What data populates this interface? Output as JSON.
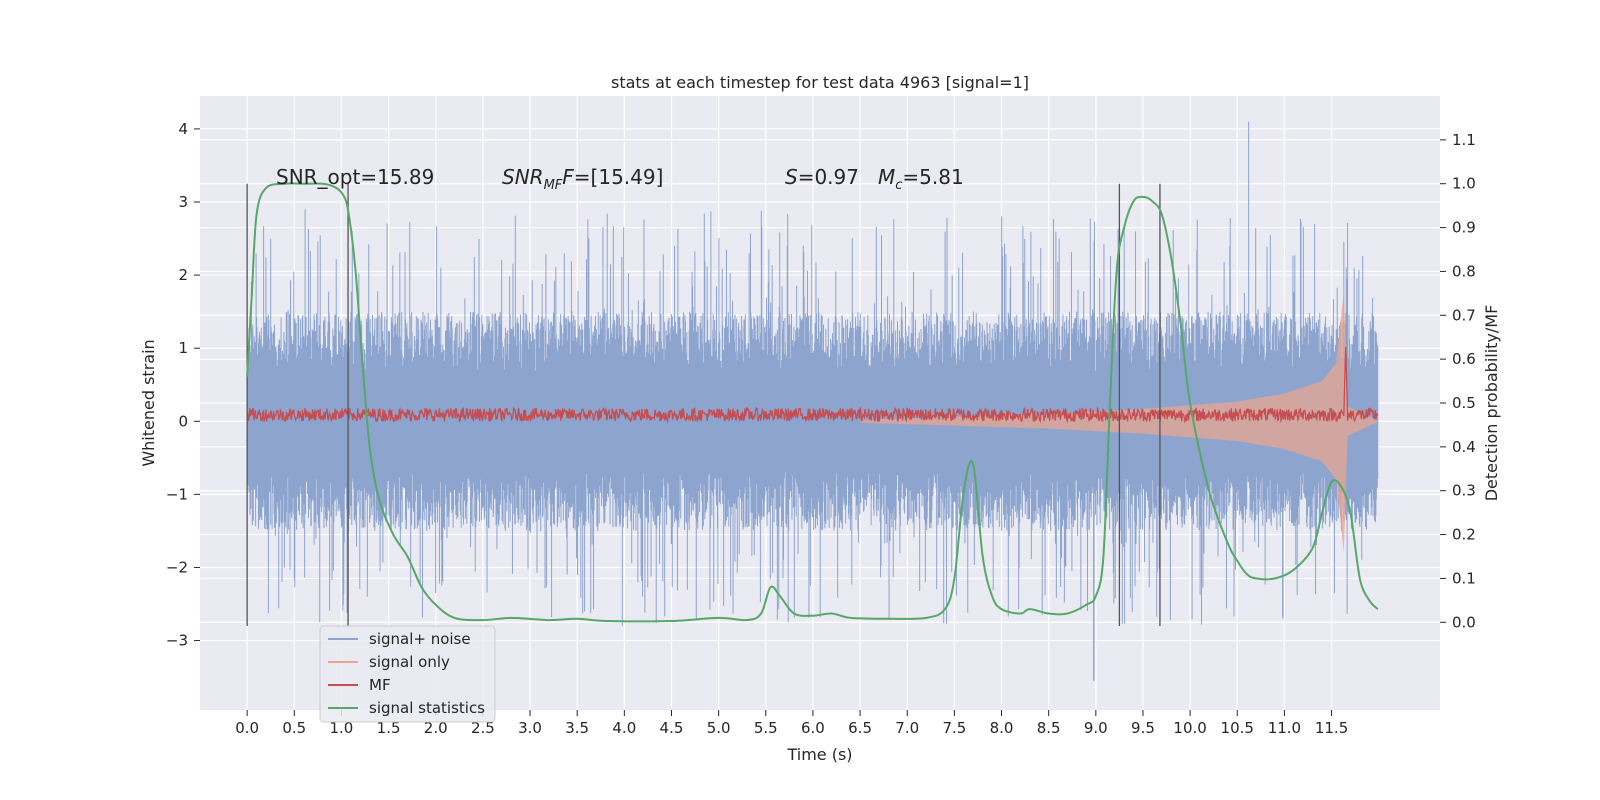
{
  "chart_data": {
    "type": "line",
    "title": "stats at each timestep for test data 4963 [signal=1]",
    "xlabel": "Time (s)",
    "ylabel": "Whitened strain",
    "y2label": "Detection probability/MF",
    "xlim": [
      -0.5,
      12.65
    ],
    "ylim": [
      -3.95,
      4.45
    ],
    "y2lim": [
      -0.2,
      1.2
    ],
    "x_ticks": [
      0.0,
      0.5,
      1.0,
      1.5,
      2.0,
      2.5,
      3.0,
      3.5,
      4.0,
      4.5,
      5.0,
      5.5,
      6.0,
      6.5,
      7.0,
      7.5,
      8.0,
      8.5,
      9.0,
      9.5,
      10.0,
      10.5,
      11.0,
      11.5
    ],
    "x_tick_labels": [
      "0.0",
      "0.5",
      "1.0",
      "1.5",
      "2.0",
      "2.5",
      "3.0",
      "3.5",
      "4.0",
      "4.5",
      "5.0",
      "5.5",
      "6.0",
      "6.5",
      "7.0",
      "7.5",
      "8.0",
      "8.5",
      "9.0",
      "9.5",
      "10.0",
      "10.5",
      "11.0",
      "11.5"
    ],
    "y_ticks": [
      -3,
      -2,
      -1,
      0,
      1,
      2,
      3,
      4
    ],
    "y_tick_labels": [
      "−3",
      "−2",
      "−1",
      "0",
      "1",
      "2",
      "3",
      "4"
    ],
    "y2_ticks": [
      0.0,
      0.1,
      0.2,
      0.3,
      0.4,
      0.5,
      0.6,
      0.7,
      0.8,
      0.9,
      1.0,
      1.1
    ],
    "y2_tick_labels": [
      "0.0",
      "0.1",
      "0.2",
      "0.3",
      "0.4",
      "0.5",
      "0.6",
      "0.7",
      "0.8",
      "0.9",
      "1.0",
      "1.1"
    ],
    "grid": true,
    "legend_position": "lower-left",
    "annotations": {
      "snr_opt": "SNR_opt=15.89",
      "snr_mf_name": "SNR",
      "snr_mf_sub": "MF",
      "snr_mf_rest": "=[15.49]",
      "s_name": "S",
      "s_value": "=0.97",
      "mc_name": "M",
      "mc_sub": "c",
      "mc_value": "=5.81"
    },
    "vertical_markers": [
      0.0,
      1.07,
      9.25,
      9.68
    ],
    "series": [
      {
        "name": "signal+ noise",
        "axis": "left",
        "color": "#8da4cf",
        "x_range": [
          0.0,
          11.99
        ],
        "typical_envelope": [
          -1.5,
          1.5
        ],
        "spike_max": 4.1,
        "spike_max_x": 10.62,
        "spike_min": -3.55,
        "spike_min_x": 8.98
      },
      {
        "name": "signal only",
        "axis": "left",
        "color": "#e8a590",
        "chirp_start": 6.5,
        "peak_x": 11.65,
        "amplitude": [
          [
            6.5,
            0.02
          ],
          [
            7.5,
            0.06
          ],
          [
            8.5,
            0.1
          ],
          [
            9.5,
            0.17
          ],
          [
            10.5,
            0.27
          ],
          [
            11.0,
            0.38
          ],
          [
            11.4,
            0.55
          ],
          [
            11.55,
            0.8
          ],
          [
            11.63,
            1.8
          ],
          [
            11.67,
            0.2
          ],
          [
            11.99,
            0.01
          ]
        ]
      },
      {
        "name": "MF",
        "axis": "left",
        "color": "#c44e52",
        "baseline": 0.09,
        "noise_band": [
          0.0,
          0.18
        ],
        "peak_x": 11.65,
        "peak_y": 1.02
      },
      {
        "name": "signal statistics",
        "axis": "right",
        "color": "#55a868",
        "points": [
          [
            0.0,
            0.56
          ],
          [
            0.05,
            0.75
          ],
          [
            0.1,
            0.93
          ],
          [
            0.2,
            0.99
          ],
          [
            0.4,
            1.0
          ],
          [
            0.6,
            1.0
          ],
          [
            0.8,
            1.0
          ],
          [
            0.9,
            0.995
          ],
          [
            1.0,
            0.98
          ],
          [
            1.07,
            0.94
          ],
          [
            1.15,
            0.8
          ],
          [
            1.22,
            0.6
          ],
          [
            1.3,
            0.4
          ],
          [
            1.4,
            0.28
          ],
          [
            1.55,
            0.2
          ],
          [
            1.7,
            0.15
          ],
          [
            1.85,
            0.08
          ],
          [
            2.0,
            0.04
          ],
          [
            2.2,
            0.01
          ],
          [
            2.5,
            0.005
          ],
          [
            2.8,
            0.01
          ],
          [
            3.2,
            0.005
          ],
          [
            3.5,
            0.008
          ],
          [
            3.8,
            0.003
          ],
          [
            4.5,
            0.003
          ],
          [
            5.0,
            0.01
          ],
          [
            5.3,
            0.005
          ],
          [
            5.45,
            0.02
          ],
          [
            5.55,
            0.08
          ],
          [
            5.65,
            0.06
          ],
          [
            5.8,
            0.02
          ],
          [
            6.0,
            0.015
          ],
          [
            6.2,
            0.02
          ],
          [
            6.4,
            0.01
          ],
          [
            6.8,
            0.008
          ],
          [
            7.2,
            0.01
          ],
          [
            7.4,
            0.03
          ],
          [
            7.5,
            0.1
          ],
          [
            7.6,
            0.3
          ],
          [
            7.7,
            0.36
          ],
          [
            7.8,
            0.15
          ],
          [
            7.9,
            0.06
          ],
          [
            8.0,
            0.03
          ],
          [
            8.2,
            0.02
          ],
          [
            8.3,
            0.03
          ],
          [
            8.5,
            0.02
          ],
          [
            8.7,
            0.02
          ],
          [
            8.9,
            0.04
          ],
          [
            9.0,
            0.06
          ],
          [
            9.08,
            0.15
          ],
          [
            9.15,
            0.5
          ],
          [
            9.22,
            0.8
          ],
          [
            9.3,
            0.9
          ],
          [
            9.4,
            0.96
          ],
          [
            9.5,
            0.97
          ],
          [
            9.6,
            0.96
          ],
          [
            9.7,
            0.93
          ],
          [
            9.8,
            0.83
          ],
          [
            9.9,
            0.68
          ],
          [
            10.0,
            0.5
          ],
          [
            10.2,
            0.3
          ],
          [
            10.4,
            0.18
          ],
          [
            10.5,
            0.14
          ],
          [
            10.6,
            0.11
          ],
          [
            10.7,
            0.1
          ],
          [
            10.9,
            0.1
          ],
          [
            11.1,
            0.12
          ],
          [
            11.3,
            0.17
          ],
          [
            11.4,
            0.25
          ],
          [
            11.5,
            0.32
          ],
          [
            11.6,
            0.31
          ],
          [
            11.7,
            0.25
          ],
          [
            11.8,
            0.1
          ],
          [
            11.9,
            0.05
          ],
          [
            11.99,
            0.03
          ]
        ]
      }
    ]
  }
}
